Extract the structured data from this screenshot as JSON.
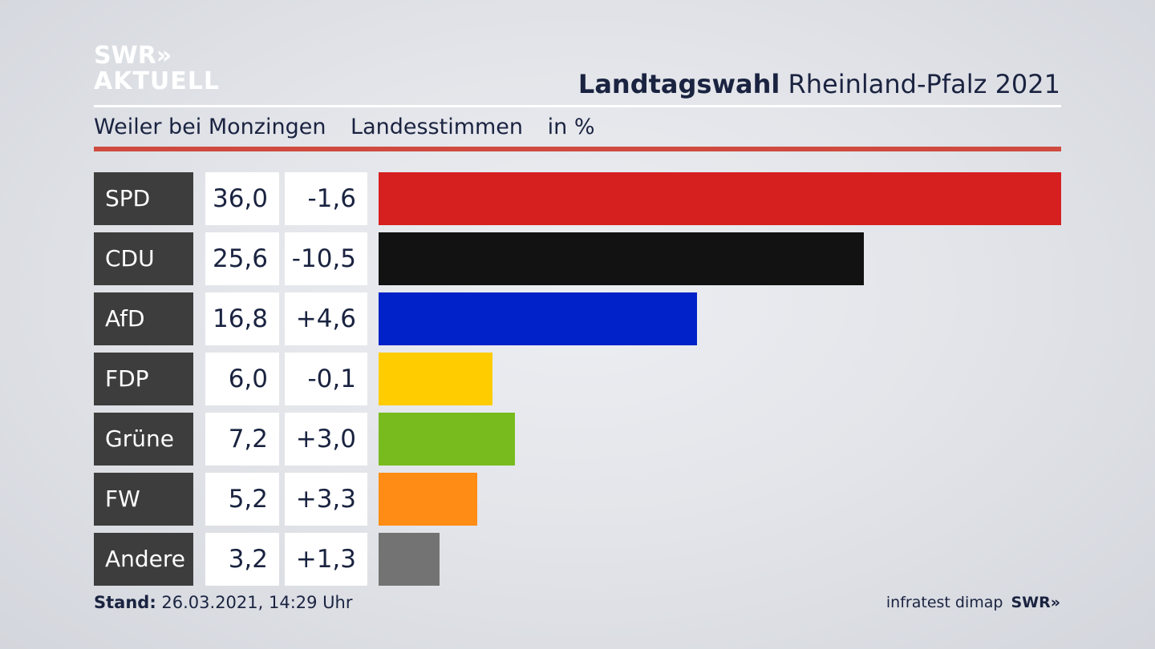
{
  "logo": {
    "line1": "SWR»",
    "line2": "AKTUELL"
  },
  "headline": {
    "bold": "Landtagswahl",
    "rest": " Rheinland-Pfalz 2021"
  },
  "subtitle": {
    "place": "Weiler bei Monzingen",
    "vote_type": "Landesstimmen",
    "unit": "in %"
  },
  "footer": {
    "stand_label": "Stand:",
    "stand_value": " 26.03.2021, 14:29 Uhr",
    "source": "infratest dimap",
    "source_logo": "SWR»"
  },
  "colors": {
    "accent_rule": "#cf4b3f",
    "label_bg": "#3d3d3d"
  },
  "chart_data": {
    "type": "bar",
    "categories": [
      "SPD",
      "CDU",
      "AfD",
      "FDP",
      "Grüne",
      "FW",
      "Andere"
    ],
    "values": [
      36.0,
      25.6,
      16.8,
      6.0,
      7.2,
      5.2,
      3.2
    ],
    "value_labels": [
      "36,0",
      "25,6",
      "16,8",
      "6,0",
      "7,2",
      "5,2",
      "3,2"
    ],
    "diff_labels": [
      "-1,6",
      "-10,5",
      "+4,6",
      "-0,1",
      "+3,0",
      "+3,3",
      "+1,3"
    ],
    "colors": [
      "#d62020",
      "#121212",
      "#0022c8",
      "#ffcc00",
      "#78bb1e",
      "#ff8c14",
      "#737373"
    ],
    "orientation": "horizontal",
    "unit": "in %"
  }
}
